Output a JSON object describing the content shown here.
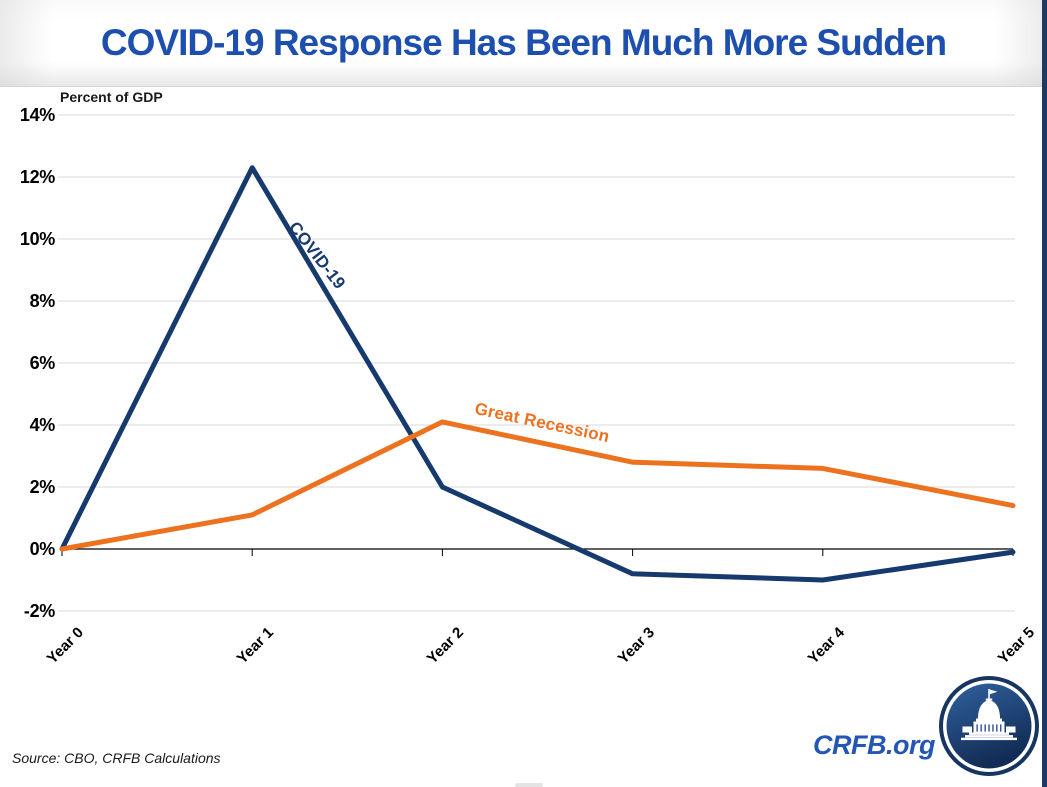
{
  "title": "COVID-19 Response Has Been Much More Sudden",
  "source": "Source: CBO, CRFB Calculations",
  "brand": "CRFB.org",
  "colors": {
    "title_blue": "#1d4fae",
    "brand_blue": "#2456b3",
    "covid_navy": "#163A6E",
    "recession_orange": "#ED7220",
    "gridline_gray": "#d9d9d9",
    "axis_black": "#000000",
    "edge_strip_navy": "#203864"
  },
  "logo": {
    "name": "crfb-capitol-logo"
  },
  "chart_data": {
    "type": "line",
    "title": "COVID-19 Response Has Been Much More Sudden",
    "ylabel": "Percent of GDP",
    "xlabel": "",
    "categories": [
      "Year 0",
      "Year 1",
      "Year 2",
      "Year 3",
      "Year 4",
      "Year 5"
    ],
    "series": [
      {
        "name": "COVID-19",
        "color": "#163A6E",
        "values": [
          0,
          12.3,
          2.0,
          -0.8,
          -1.0,
          -0.1
        ]
      },
      {
        "name": "Great Recession",
        "color": "#ED7220",
        "values": [
          0,
          1.1,
          4.1,
          2.8,
          2.6,
          1.4
        ]
      }
    ],
    "ylim": [
      -2,
      14
    ],
    "ytick_step": 2,
    "yticks": [
      "14%",
      "12%",
      "10%",
      "8%",
      "6%",
      "4%",
      "2%",
      "0%",
      "-2%"
    ],
    "grid": true,
    "legend": "inline-series-labels",
    "x_tick_label_rotation_deg": -45
  }
}
